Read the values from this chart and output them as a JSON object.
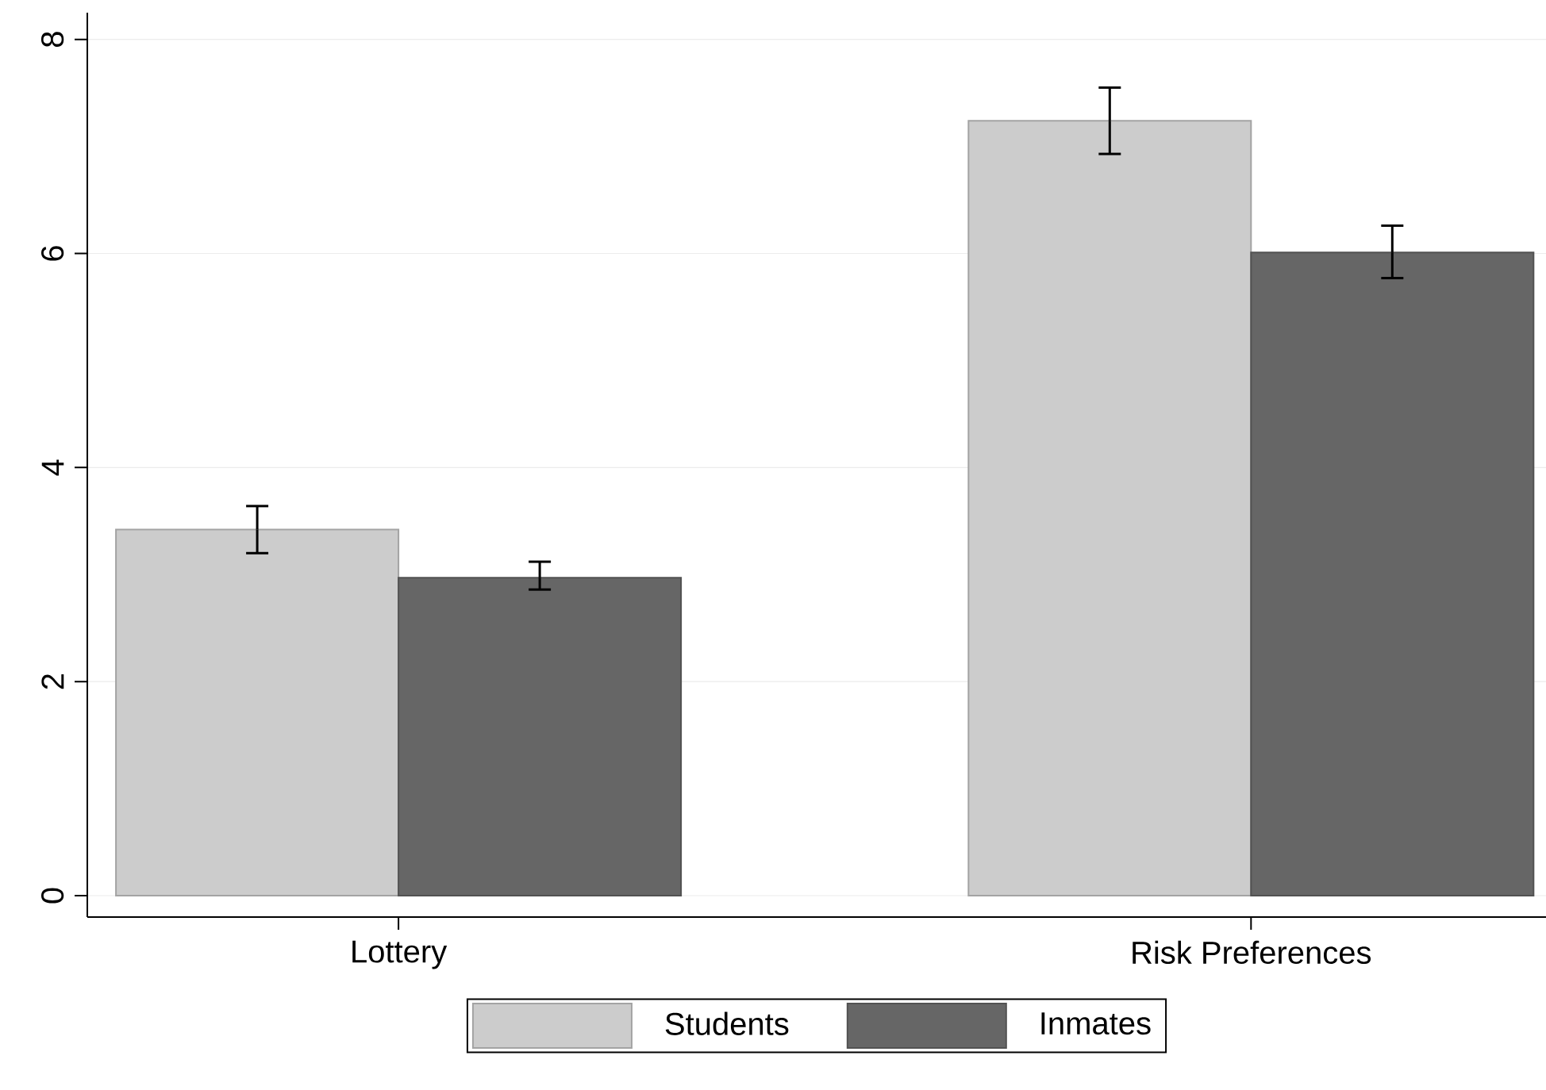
{
  "chart_data": {
    "type": "bar",
    "categories": [
      "Lottery",
      "Risk Preferences"
    ],
    "series": [
      {
        "name": "Students",
        "color": "#cccccc",
        "values": [
          3.42,
          7.24
        ],
        "errors": [
          [
            3.2,
            3.64
          ],
          [
            6.93,
            7.55
          ]
        ]
      },
      {
        "name": "Inmates",
        "color": "#666666",
        "values": [
          2.97,
          6.01
        ],
        "errors": [
          [
            2.86,
            3.12
          ],
          [
            5.77,
            6.26
          ]
        ]
      }
    ],
    "ylim": [
      -0.2,
      8.25
    ],
    "yticks": [
      0,
      2,
      4,
      6,
      8
    ],
    "grid": "y",
    "legend": "bottom"
  }
}
